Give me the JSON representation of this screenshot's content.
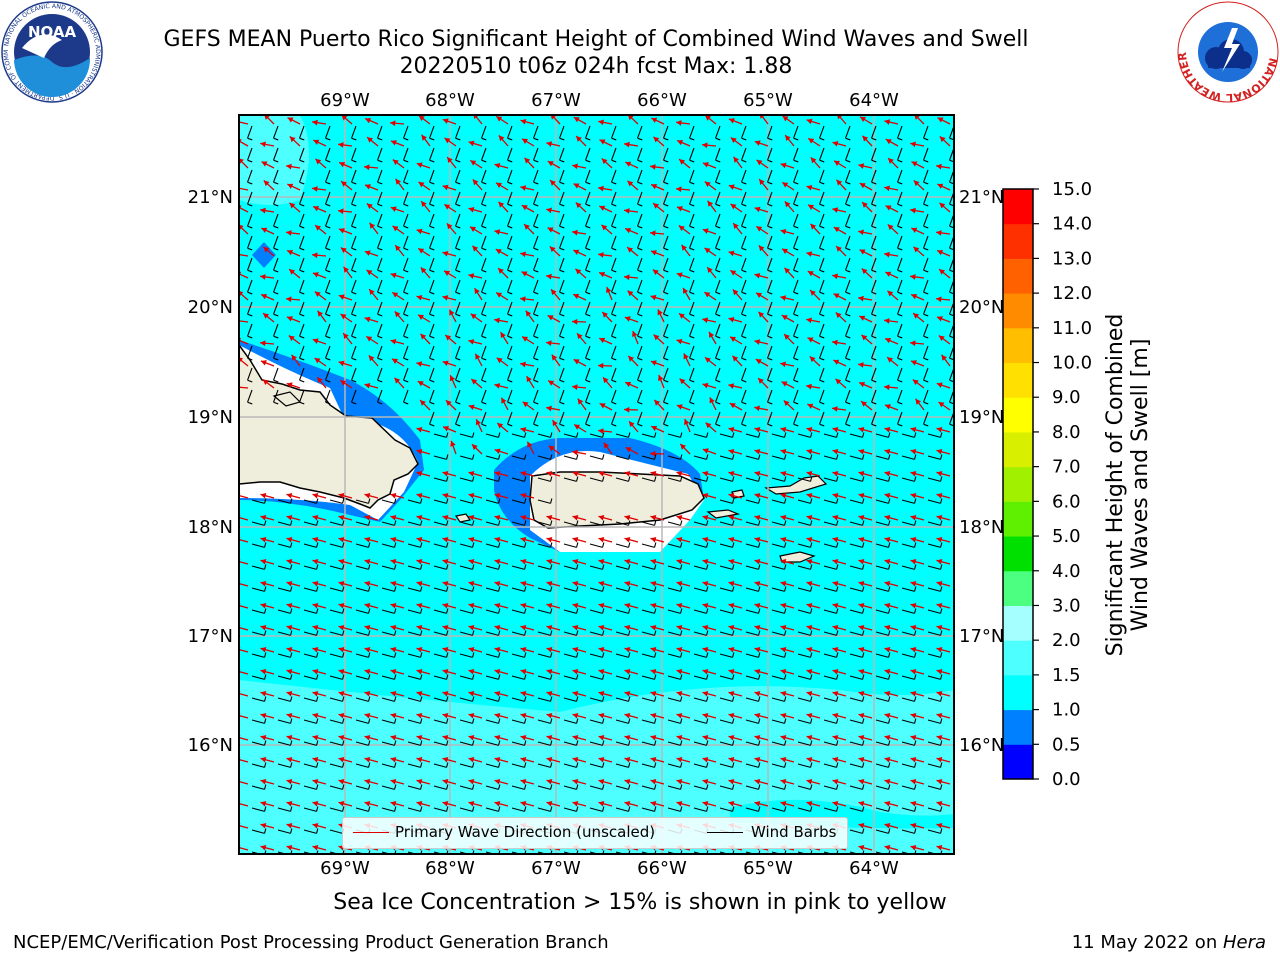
{
  "title": {
    "line1": "GEFS MEAN Puerto Rico Significant Height of Combined Wind Waves and Swell",
    "line2": "20220510 t06z 024h fcst   Max: 1.88"
  },
  "map": {
    "lon_labels": [
      "69°W",
      "68°W",
      "67°W",
      "66°W",
      "65°W",
      "64°W"
    ],
    "lat_labels": [
      "21°N",
      "20°N",
      "19°N",
      "18°N",
      "17°N",
      "16°N"
    ],
    "legend": {
      "wave_label": "Primary Wave Direction (unscaled)",
      "barb_label": "Wind Barbs"
    },
    "land_color": "#efeddc",
    "sea_color": "#00ffff",
    "arrow_color": "#e00000",
    "barb_color": "#000000"
  },
  "colorbar": {
    "label_line1": "Significant Height of Combined",
    "label_line2": "Wind Waves and Swell [m]",
    "ticks": [
      "0.0",
      "0.5",
      "1.0",
      "1.5",
      "2.0",
      "3.0",
      "4.0",
      "5.0",
      "6.0",
      "7.0",
      "8.0",
      "9.0",
      "10.0",
      "11.0",
      "12.0",
      "13.0",
      "14.0",
      "15.0"
    ],
    "colors": [
      "#0000ff",
      "#0080ff",
      "#00ffff",
      "#4dffff",
      "#a6ffff",
      "#4dff80",
      "#00e000",
      "#5ef000",
      "#a0f000",
      "#d8f000",
      "#ffff00",
      "#ffe000",
      "#ffbf00",
      "#ff8c00",
      "#ff6000",
      "#ff3000",
      "#ff0000"
    ]
  },
  "subtitle": "Sea Ice Concentration > 15% is shown in pink to yellow",
  "footer": {
    "left": "NCEP/EMC/Verification Post Processing Product Generation Branch",
    "date": "11 May 2022 on ",
    "host": "Hera"
  },
  "logos": {
    "noaa_text": "NOAA",
    "noaa_ring": "NATIONAL OCEANIC AND ATMOSPHERIC ADMINISTRATION · U.S. DEPARTMENT OF COMMERCE",
    "nws_ring": "NATIONAL WEATHER SERVICE"
  }
}
